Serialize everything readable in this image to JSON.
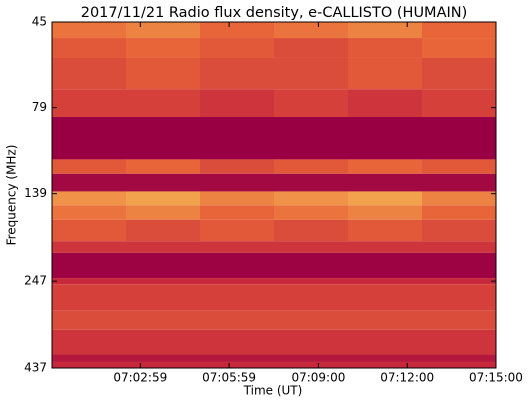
{
  "chart_data": {
    "type": "spectrogram",
    "title": "2017/11/21  Radio flux density, e-CALLISTO (HUMAIN)",
    "xlabel": "Time (UT)",
    "ylabel": "Frequency (MHz)",
    "xlim": [
      "07:00:00",
      "07:15:00"
    ],
    "xticks": [
      "07:02:59",
      "07:05:59",
      "07:09:00",
      "07:12:00",
      "07:15:00"
    ],
    "ylim": [
      437,
      45
    ],
    "yticks": [
      45,
      79,
      139,
      247,
      437
    ],
    "ylog": true,
    "time_bins": [
      "07:00:00",
      "07:02:30",
      "07:05:00",
      "07:07:30",
      "07:10:00",
      "07:12:30",
      "07:15:00"
    ],
    "frequency_bins": [
      45,
      50,
      57,
      70,
      84,
      111,
      122,
      137,
      150,
      165,
      190,
      205,
      242,
      252,
      300,
      340,
      400,
      420,
      437
    ],
    "values": [
      [
        0.55,
        0.6,
        0.5,
        0.55,
        0.6,
        0.5
      ],
      [
        0.45,
        0.5,
        0.45,
        0.4,
        0.45,
        0.5
      ],
      [
        0.4,
        0.45,
        0.4,
        0.4,
        0.45,
        0.4
      ],
      [
        0.35,
        0.35,
        0.3,
        0.35,
        0.3,
        0.35
      ],
      [
        0,
        0,
        0,
        0,
        0,
        0
      ],
      [
        0.45,
        0.5,
        0.4,
        0.45,
        0.5,
        0.45
      ],
      [
        0.05,
        0.05,
        0.05,
        0.05,
        0.05,
        0.05
      ],
      [
        0.65,
        0.7,
        0.6,
        0.65,
        0.7,
        0.6
      ],
      [
        0.55,
        0.6,
        0.5,
        0.55,
        0.6,
        0.5
      ],
      [
        0.45,
        0.4,
        0.45,
        0.4,
        0.45,
        0.4
      ],
      [
        0.3,
        0.3,
        0.3,
        0.3,
        0.3,
        0.3
      ],
      [
        0.02,
        0.02,
        0.02,
        0.02,
        0.02,
        0.02
      ],
      [
        0.25,
        0.25,
        0.25,
        0.25,
        0.25,
        0.25
      ],
      [
        0.35,
        0.35,
        0.35,
        0.35,
        0.35,
        0.35
      ],
      [
        0.4,
        0.4,
        0.4,
        0.4,
        0.4,
        0.4
      ],
      [
        0.3,
        0.3,
        0.3,
        0.3,
        0.3,
        0.3
      ],
      [
        0.15,
        0.15,
        0.15,
        0.15,
        0.15,
        0.15
      ],
      [
        0.25,
        0.25,
        0.25,
        0.25,
        0.25,
        0.25
      ]
    ],
    "colormap": [
      "#990044",
      "#c8283c",
      "#e8653a",
      "#f5b050",
      "#faf0b4"
    ]
  }
}
